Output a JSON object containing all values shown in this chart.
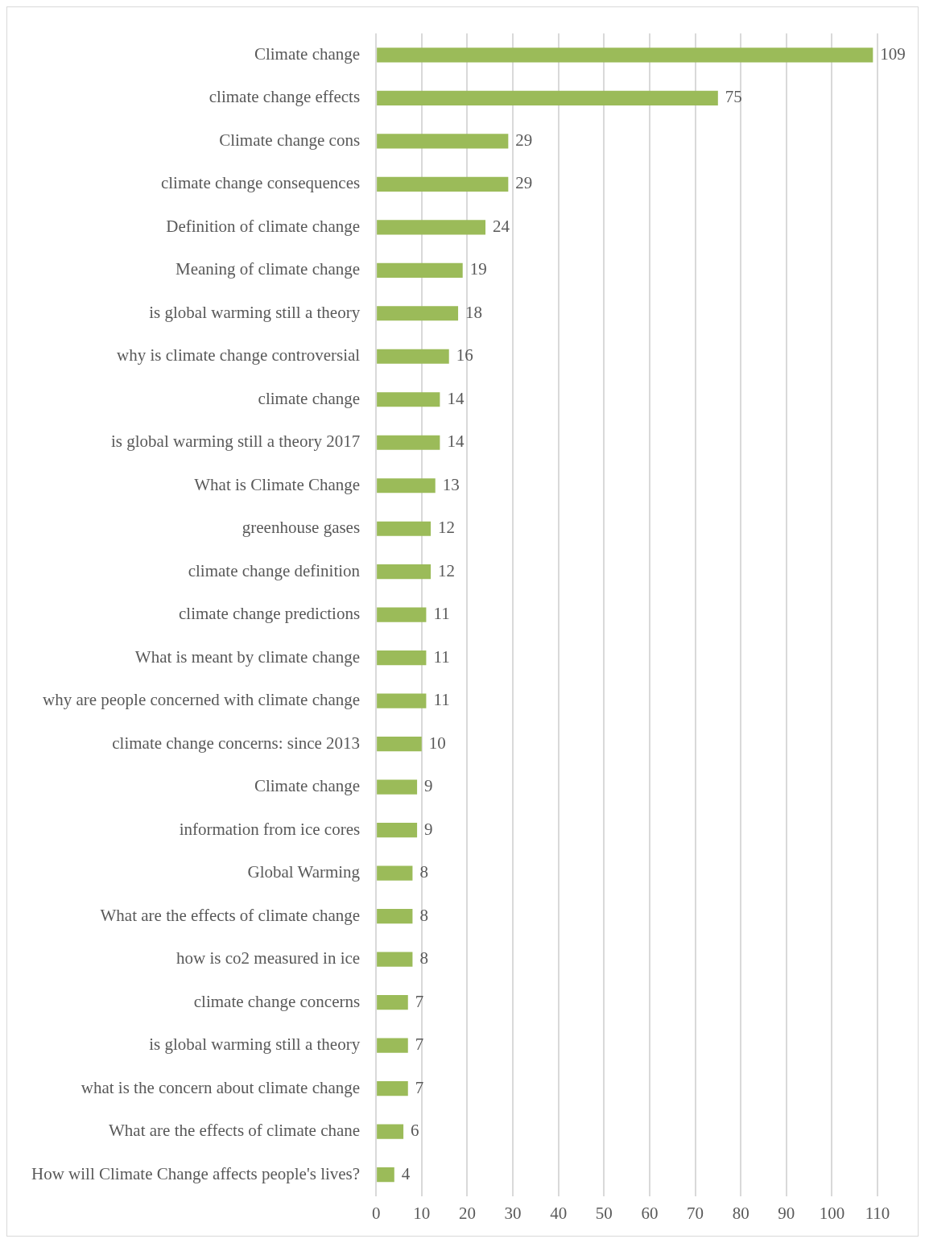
{
  "chart_data": {
    "type": "bar",
    "orientation": "horizontal",
    "categories": [
      "Climate change",
      "climate change effects",
      "Climate change cons",
      "climate change consequences",
      "Definition of climate change",
      "Meaning of climate change",
      "is global warming still a theory",
      "why is climate change controversial",
      "climate change",
      "is global warming still a theory 2017",
      "What is Climate Change",
      "greenhouse gases",
      "climate change definition",
      "climate change predictions",
      "What is meant by climate change",
      "why are people concerned with climate change",
      "climate change concerns: since 2013",
      "Climate change",
      "information from ice cores",
      "Global Warming",
      "What are the effects of climate change",
      "how is co2 measured in ice",
      "climate change concerns",
      "is global warming still a theory",
      "what is the concern about climate change",
      "What are the effects of climate chane",
      "How will Climate Change affects people's lives?"
    ],
    "values": [
      109,
      75,
      29,
      29,
      24,
      19,
      18,
      16,
      14,
      14,
      13,
      12,
      12,
      11,
      11,
      11,
      10,
      9,
      9,
      8,
      8,
      8,
      7,
      7,
      7,
      6,
      4
    ],
    "color": "#9bbb59",
    "xlim": [
      0,
      110
    ],
    "xticks": [
      0,
      10,
      20,
      30,
      40,
      50,
      60,
      70,
      80,
      90,
      100,
      110
    ],
    "grid": "x",
    "data_labels": true
  }
}
